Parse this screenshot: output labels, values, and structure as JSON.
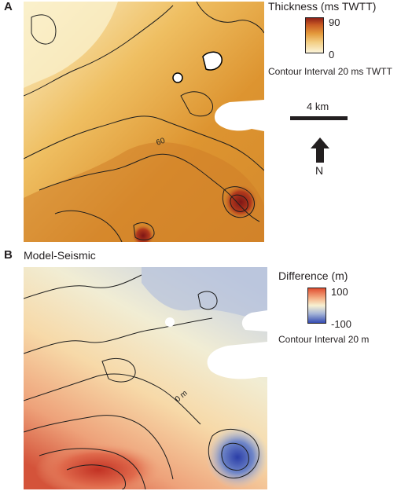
{
  "panel_a": {
    "letter": "A",
    "legend": {
      "title": "Thickness (ms TWTT)",
      "max": "90",
      "min": "0",
      "contour_note": "Contour Interval 20 ms TWTT",
      "colors": [
        "#fbf5dc",
        "#f3cf85",
        "#e49a3c",
        "#c85a24",
        "#8c1e16"
      ]
    },
    "contour_labels": [
      "60"
    ],
    "scale_bar": "4 km",
    "north": "N"
  },
  "panel_b": {
    "letter": "B",
    "subtitle": "Model-Seismic",
    "legend": {
      "title": "Difference (m)",
      "max": "100",
      "min": "-100",
      "contour_note": "Contour Interval 20 m",
      "colors": [
        "#e04a2c",
        "#f5b48a",
        "#f7f1d2",
        "#a9b8d8",
        "#3048b0"
      ]
    },
    "contour_labels": [
      "0 m"
    ]
  }
}
